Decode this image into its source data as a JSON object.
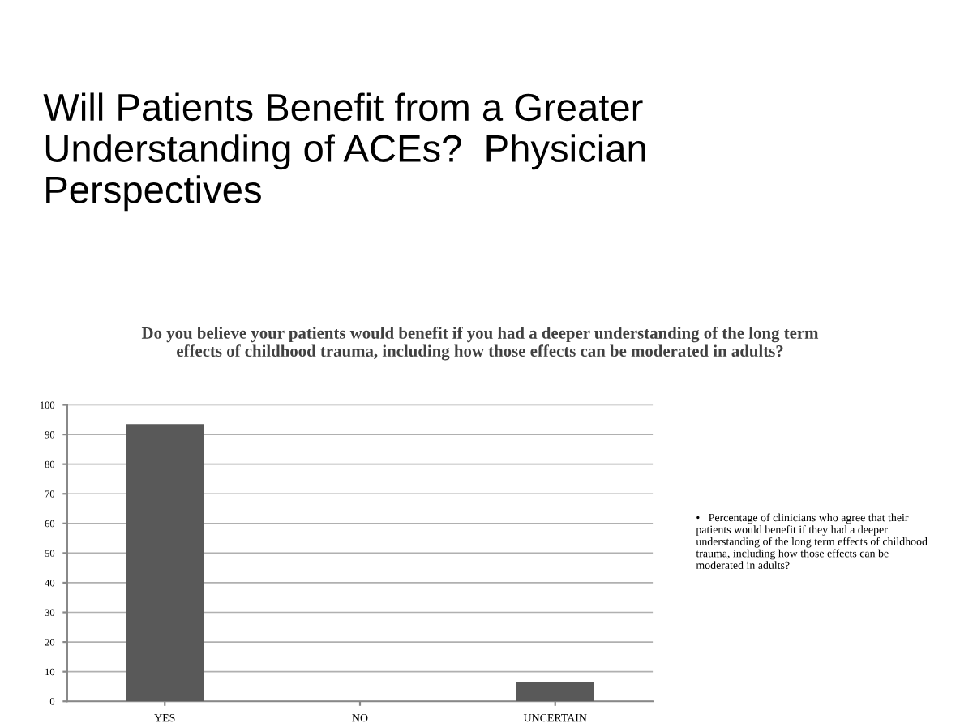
{
  "chart_data": {
    "type": "bar",
    "title": "Will Patients Benefit from a Greater Understanding of ACEs?  Physician Perspectives",
    "subtitle": "Do you believe your patients would benefit if you had a deeper understanding of the long term effects of childhood trauma, including how those effects can be moderated in adults?",
    "categories": [
      "YES",
      "NO",
      "UNCERTAIN"
    ],
    "values": [
      93.5,
      0,
      6.5
    ],
    "color": "#595959",
    "ylim": [
      0,
      100
    ],
    "yticks": [
      0,
      10,
      20,
      30,
      40,
      50,
      60,
      70,
      80,
      90,
      100
    ],
    "grid": "y",
    "legend": false,
    "annotations": [
      "•   Percentage of clinicians who agree that their patients would benefit if they had a deeper understanding of the long term effects of childhood trauma, including how those effects can be moderated in adults?"
    ]
  }
}
